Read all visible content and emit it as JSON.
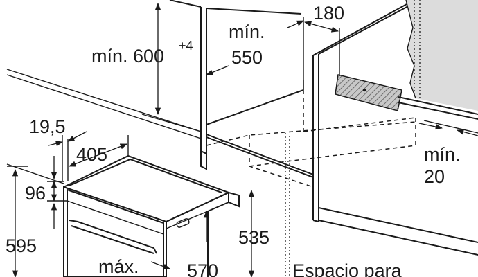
{
  "dimensions": {
    "niche_height": "mín. 600",
    "niche_height_tol": "+4",
    "niche_depth_1": "mín.",
    "niche_depth_2": "550",
    "vent_width": "180",
    "gap_1": "mín.",
    "gap_2": "20",
    "panel": "19,5",
    "oven_depth": "405",
    "front_height": "96",
    "oven_height": "595",
    "body_height": "535",
    "max_label": "máx.",
    "body_width": "570",
    "space_label": "Espacio para"
  },
  "colors": {
    "line": "#1a1a1a",
    "hatch": "#9a9a9a",
    "background": "#ffffff"
  }
}
